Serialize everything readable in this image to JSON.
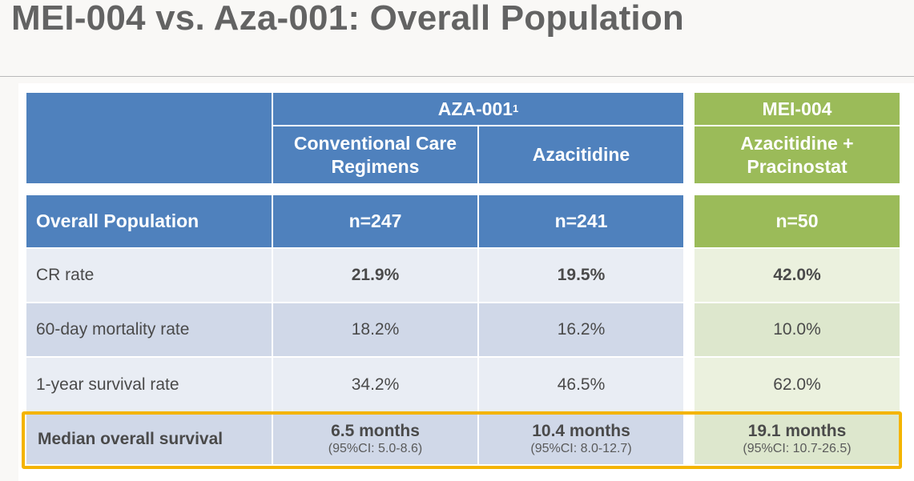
{
  "title": "MEI-004 vs. Aza-001: Overall Population",
  "header": {
    "aza_group": "AZA-001",
    "aza_group_sup": "1",
    "mei_group": "MEI-004",
    "col_conventional": "Conventional Care Regimens",
    "col_azacitidine": "Azacitidine",
    "col_combo": "Azacitidine + Pracinostat"
  },
  "population_row": {
    "label": "Overall Population",
    "values": [
      "n=247",
      "n=241",
      "n=50"
    ]
  },
  "rows": [
    {
      "label": "CR rate",
      "values": [
        "21.9%",
        "19.5%",
        "42.0%"
      ]
    },
    {
      "label": "60-day mortality rate",
      "values": [
        "18.2%",
        "16.2%",
        "10.0%"
      ]
    },
    {
      "label": "1-year survival rate",
      "values": [
        "34.2%",
        "46.5%",
        "62.0%"
      ]
    }
  ],
  "survival_row": {
    "label": "Median overall survival",
    "values": [
      {
        "months": "6.5 months",
        "ci": "(95%CI: 5.0-8.6)"
      },
      {
        "months": "10.4 months",
        "ci": "(95%CI: 8.0-12.7)"
      },
      {
        "months": "19.1 months",
        "ci": "(95%CI: 10.7-26.5)"
      }
    ]
  },
  "colors": {
    "blue_header": "#4f81bd",
    "green_header": "#9bbb59",
    "highlight_border": "#f4b400",
    "title_gray": "#636363"
  }
}
